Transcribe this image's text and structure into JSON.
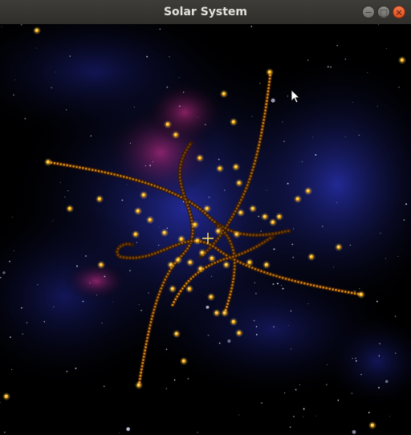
{
  "window": {
    "title": "Solar System",
    "controls": {
      "minimize_glyph": "−",
      "maximize_glyph": "□",
      "close_glyph": "×"
    }
  },
  "scene": {
    "background_color": "#000000",
    "nebula_colors": [
      "#1b1f8a",
      "#3b1a8c",
      "#8a1f6a"
    ],
    "planet_color": "#ffb31a",
    "planet_glow_color": "#ffd24d",
    "trail_color": "#3a1a00",
    "center_marker": "crosshair",
    "center_marker_color": "#ffe060"
  },
  "cursor": {
    "icon": "mouse-pointer-icon"
  }
}
